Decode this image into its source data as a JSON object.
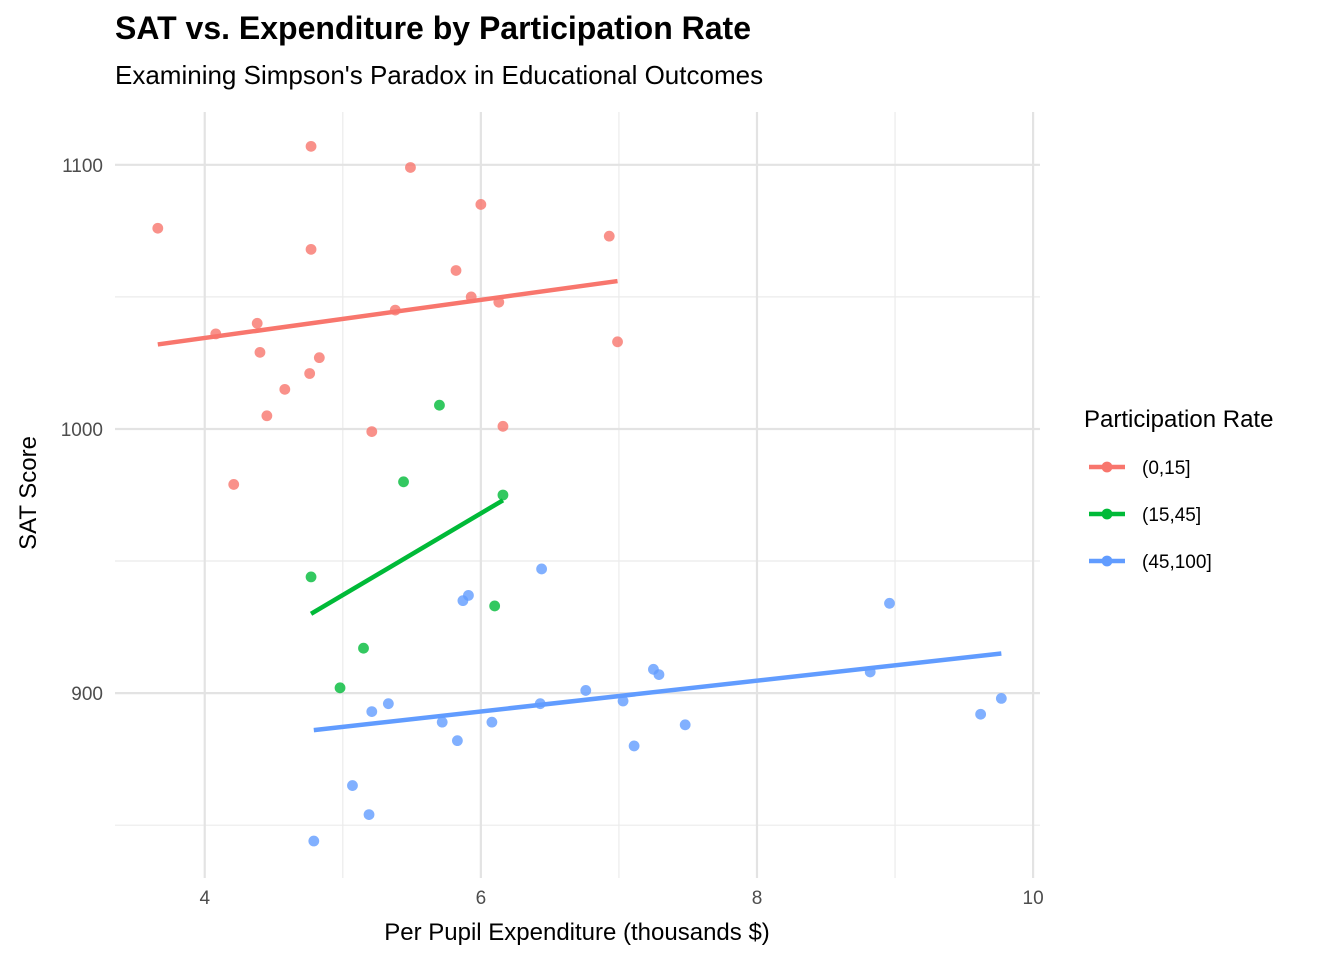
{
  "chart_data": {
    "type": "scatter",
    "title": "SAT vs. Expenditure by Participation Rate",
    "subtitle": "Examining Simpson's Paradox in Educational Outcomes",
    "xlabel": "Per Pupil Expenditure (thousands $)",
    "ylabel": "SAT Score",
    "xlim": [
      3.35,
      10.05
    ],
    "ylim": [
      830,
      1120
    ],
    "x_ticks": [
      4,
      6,
      8,
      10
    ],
    "y_ticks": [
      900,
      1000,
      1100
    ],
    "x_minor_ticks": [
      5,
      7,
      9
    ],
    "y_minor_ticks": [
      850,
      950,
      1050
    ],
    "grid": true,
    "legend": {
      "title": "Participation Rate",
      "position": "right"
    },
    "series": [
      {
        "name": "(0,15]",
        "color": "#F8766D",
        "points": [
          {
            "x": 3.66,
            "y": 1076
          },
          {
            "x": 4.08,
            "y": 1036
          },
          {
            "x": 4.21,
            "y": 979
          },
          {
            "x": 4.38,
            "y": 1040
          },
          {
            "x": 4.4,
            "y": 1029
          },
          {
            "x": 4.45,
            "y": 1005
          },
          {
            "x": 4.58,
            "y": 1015
          },
          {
            "x": 4.76,
            "y": 1021
          },
          {
            "x": 4.77,
            "y": 1107
          },
          {
            "x": 4.77,
            "y": 1068
          },
          {
            "x": 4.83,
            "y": 1027
          },
          {
            "x": 5.21,
            "y": 999
          },
          {
            "x": 5.38,
            "y": 1045
          },
          {
            "x": 5.49,
            "y": 1099
          },
          {
            "x": 5.82,
            "y": 1060
          },
          {
            "x": 5.93,
            "y": 1050
          },
          {
            "x": 6.0,
            "y": 1085
          },
          {
            "x": 6.13,
            "y": 1048
          },
          {
            "x": 6.16,
            "y": 1001
          },
          {
            "x": 6.93,
            "y": 1073
          },
          {
            "x": 6.99,
            "y": 1033
          }
        ],
        "trend": {
          "x": [
            3.66,
            6.99
          ],
          "y": [
            1032,
            1056
          ]
        }
      },
      {
        "name": "(15,45]",
        "color": "#00BA38",
        "points": [
          {
            "x": 4.77,
            "y": 944
          },
          {
            "x": 4.98,
            "y": 902
          },
          {
            "x": 5.15,
            "y": 917
          },
          {
            "x": 5.44,
            "y": 980
          },
          {
            "x": 5.7,
            "y": 1009
          },
          {
            "x": 6.1,
            "y": 933
          },
          {
            "x": 6.16,
            "y": 975
          }
        ],
        "trend": {
          "x": [
            4.77,
            6.16
          ],
          "y": [
            930,
            973
          ]
        }
      },
      {
        "name": "(45,100]",
        "color": "#619CFF",
        "points": [
          {
            "x": 4.79,
            "y": 844
          },
          {
            "x": 5.07,
            "y": 865
          },
          {
            "x": 5.19,
            "y": 854
          },
          {
            "x": 5.21,
            "y": 893
          },
          {
            "x": 5.33,
            "y": 896
          },
          {
            "x": 5.72,
            "y": 889
          },
          {
            "x": 5.83,
            "y": 882
          },
          {
            "x": 5.87,
            "y": 935
          },
          {
            "x": 5.91,
            "y": 937
          },
          {
            "x": 6.08,
            "y": 889
          },
          {
            "x": 6.43,
            "y": 896
          },
          {
            "x": 6.44,
            "y": 947
          },
          {
            "x": 6.76,
            "y": 901
          },
          {
            "x": 7.03,
            "y": 897
          },
          {
            "x": 7.11,
            "y": 880
          },
          {
            "x": 7.25,
            "y": 909
          },
          {
            "x": 7.29,
            "y": 907
          },
          {
            "x": 7.48,
            "y": 888
          },
          {
            "x": 8.82,
            "y": 908
          },
          {
            "x": 8.96,
            "y": 934
          },
          {
            "x": 9.62,
            "y": 892
          },
          {
            "x": 9.77,
            "y": 898
          }
        ],
        "trend": {
          "x": [
            4.79,
            9.77
          ],
          "y": [
            886,
            915
          ]
        }
      }
    ]
  }
}
